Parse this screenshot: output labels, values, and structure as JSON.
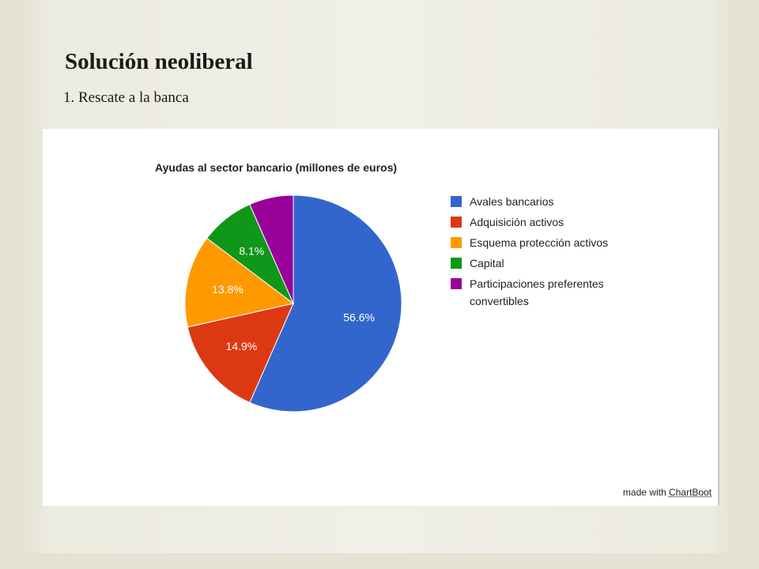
{
  "slide": {
    "title": "Solución neoliberal",
    "subtitle": "1. Rescate a la banca"
  },
  "chart_data": {
    "type": "pie",
    "title": "Ayudas al sector bancario (millones de euros)",
    "slices": [
      {
        "label": "Avales bancarios",
        "percent": 56.6,
        "color": "#3366cc",
        "data_label": "56.6%"
      },
      {
        "label": "Adquisición activos",
        "percent": 14.9,
        "color": "#dc3912",
        "data_label": "14.9%"
      },
      {
        "label": "Esquema protección activos",
        "percent": 13.8,
        "color": "#ff9900",
        "data_label": "13.8%"
      },
      {
        "label": "Capital",
        "percent": 8.1,
        "color": "#109618",
        "data_label": "8.1%"
      },
      {
        "label": "Participaciones preferentes convertibles",
        "percent": 6.6,
        "color": "#990099",
        "data_label": ""
      }
    ],
    "legend_position": "right"
  },
  "credit": {
    "prefix": "made with",
    "brand": "ChartBoot"
  }
}
